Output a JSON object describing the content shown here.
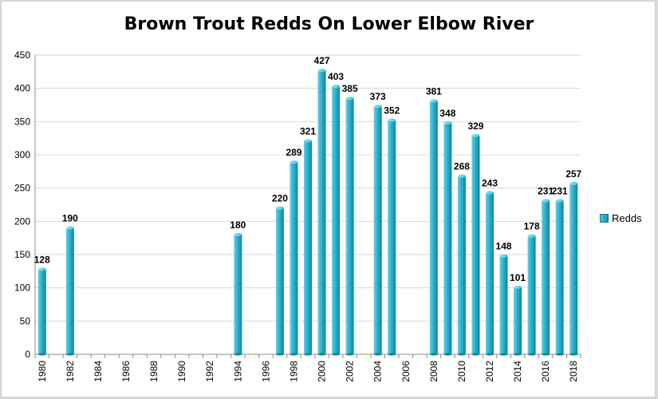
{
  "colors": {
    "bar_light": "#5fd0e6",
    "bar_mid": "#2fb0cc",
    "bar_dark": "#14839b",
    "grid": "#d9d9d9",
    "axis": "#8c8c8c"
  },
  "chart_data": {
    "type": "bar",
    "title": "Brown Trout Redds On Lower Elbow River",
    "xlabel": "",
    "ylabel": "",
    "ylim": [
      0,
      450
    ],
    "ytick_step": 50,
    "x_tick_labels": [
      "1980",
      "1982",
      "1984",
      "1986",
      "1988",
      "1990",
      "1992",
      "1994",
      "1996",
      "1998",
      "2000",
      "2002",
      "2004",
      "2006",
      "2008",
      "2010",
      "2012",
      "2014",
      "2016",
      "2018"
    ],
    "x_range": [
      1980,
      2018
    ],
    "grid": true,
    "legend_position": "right",
    "series": [
      {
        "name": "Redds",
        "points": [
          {
            "x": 1980,
            "y": 128
          },
          {
            "x": 1982,
            "y": 190
          },
          {
            "x": 1994,
            "y": 180
          },
          {
            "x": 1997,
            "y": 220
          },
          {
            "x": 1998,
            "y": 289
          },
          {
            "x": 1999,
            "y": 321
          },
          {
            "x": 2000,
            "y": 427
          },
          {
            "x": 2001,
            "y": 403
          },
          {
            "x": 2002,
            "y": 385
          },
          {
            "x": 2004,
            "y": 373
          },
          {
            "x": 2005,
            "y": 352
          },
          {
            "x": 2008,
            "y": 381
          },
          {
            "x": 2009,
            "y": 348
          },
          {
            "x": 2010,
            "y": 268
          },
          {
            "x": 2011,
            "y": 329
          },
          {
            "x": 2012,
            "y": 243
          },
          {
            "x": 2013,
            "y": 148
          },
          {
            "x": 2014,
            "y": 101
          },
          {
            "x": 2015,
            "y": 178
          },
          {
            "x": 2016,
            "y": 231
          },
          {
            "x": 2017,
            "y": 231
          },
          {
            "x": 2018,
            "y": 257
          }
        ]
      }
    ]
  }
}
